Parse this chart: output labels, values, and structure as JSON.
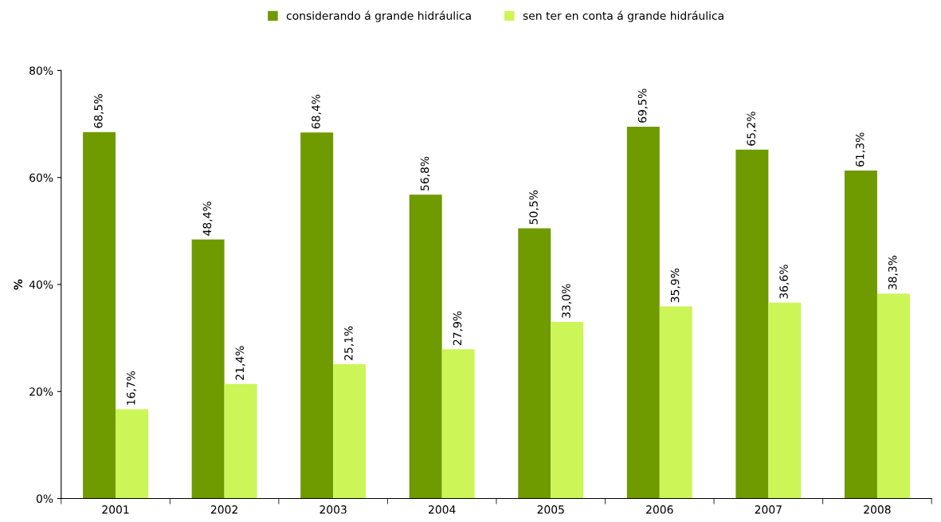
{
  "chart_data": {
    "type": "bar",
    "ylabel": "%",
    "categories": [
      "2001",
      "2002",
      "2003",
      "2004",
      "2005",
      "2006",
      "2007",
      "2008"
    ],
    "series": [
      {
        "name": "considerando á grande hidráulica",
        "color": "#6f9a00",
        "values": [
          68.5,
          48.4,
          68.4,
          56.8,
          50.5,
          69.5,
          65.2,
          61.3
        ],
        "value_labels": [
          "68,5%",
          "48,4%",
          "68,4%",
          "56,8%",
          "50,5%",
          "69,5%",
          "65,2%",
          "61,3%"
        ]
      },
      {
        "name": "sen ter en conta á grande hidráulica",
        "color": "#ccf558",
        "values": [
          16.7,
          21.4,
          25.1,
          27.9,
          33.0,
          35.9,
          36.6,
          38.3
        ],
        "value_labels": [
          "16,7%",
          "21,4%",
          "25,1%",
          "27,9%",
          "33,0%",
          "35,9%",
          "36,6%",
          "38,3%"
        ]
      }
    ],
    "ylim": [
      0,
      80
    ],
    "yticks": [
      {
        "value": 0,
        "label": "0%"
      },
      {
        "value": 20,
        "label": "20%"
      },
      {
        "value": 40,
        "label": "40%"
      },
      {
        "value": 60,
        "label": "60%"
      },
      {
        "value": 80,
        "label": "80%"
      }
    ],
    "grid": false,
    "legend": "top"
  }
}
